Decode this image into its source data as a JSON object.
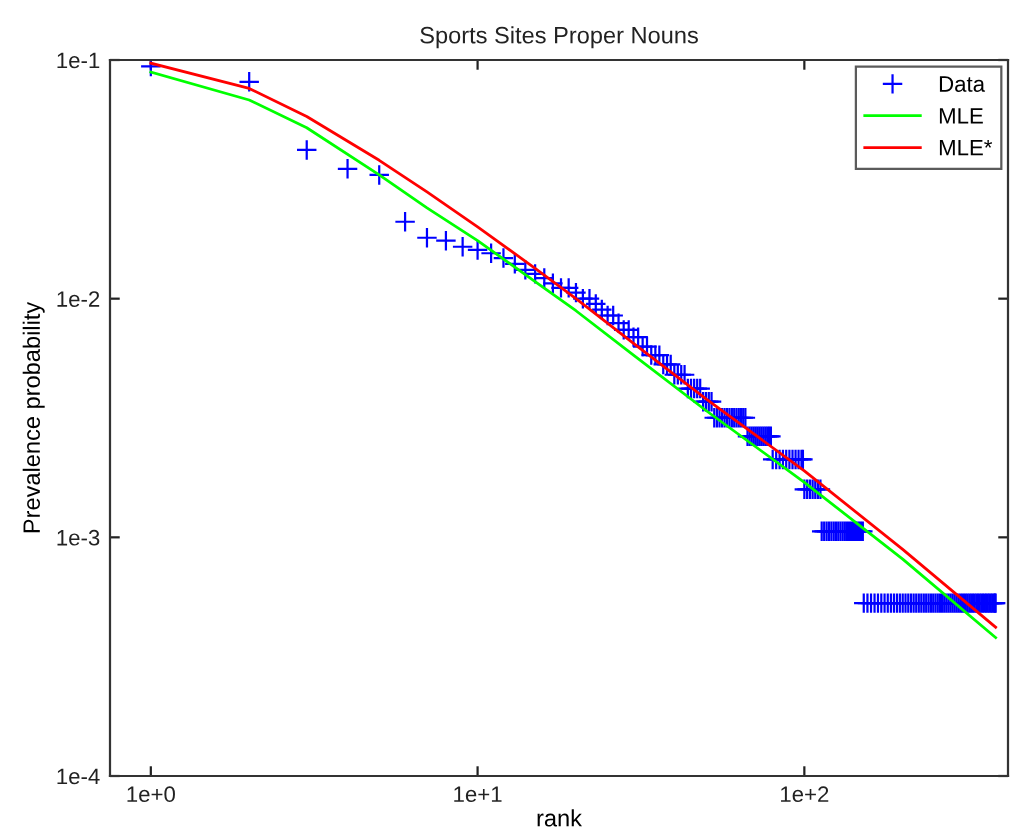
{
  "chart_data": {
    "type": "line",
    "title": "Sports Sites Proper Nouns",
    "xlabel": "rank",
    "ylabel": "Prevalence probability",
    "log": "xy",
    "xlim": [
      0.75,
      420
    ],
    "ylim": [
      0.0001,
      0.1
    ],
    "xticks": [
      {
        "value": 1,
        "label": "1e+0"
      },
      {
        "value": 10,
        "label": "1e+1"
      },
      {
        "value": 100,
        "label": "1e+2"
      }
    ],
    "yticks": [
      {
        "value": 0.0001,
        "label": "1e-4"
      },
      {
        "value": 0.001,
        "label": "1e-3"
      },
      {
        "value": 0.01,
        "label": "1e-2"
      },
      {
        "value": 0.1,
        "label": "1e-1"
      }
    ],
    "grid": false,
    "legend": "top right",
    "series": [
      {
        "name": "Data",
        "type": "scatter",
        "marker": "cross",
        "color": "#0000ff",
        "x": [
          1,
          2,
          3,
          4,
          5,
          6,
          7,
          8,
          9,
          10,
          11,
          12,
          13,
          14,
          15,
          16,
          17,
          18,
          19,
          20,
          21,
          22,
          23,
          24,
          25,
          26,
          27,
          28,
          29,
          30,
          31,
          32,
          33,
          34,
          35,
          36,
          37,
          38,
          39,
          40,
          41,
          42,
          43,
          44,
          45,
          46,
          47,
          48,
          49,
          50,
          51,
          52,
          53,
          54,
          55,
          56,
          57,
          58,
          59,
          60,
          61,
          62,
          63,
          64,
          65,
          66,
          67,
          68,
          69,
          70,
          71,
          72,
          73,
          74,
          75,
          76,
          77,
          78,
          79,
          80,
          82,
          84,
          86,
          88,
          90,
          92,
          94,
          96,
          98,
          99,
          100,
          102,
          104,
          106,
          108,
          110,
          112,
          113,
          115,
          117,
          119,
          121,
          123,
          125,
          127,
          129,
          131,
          133,
          135,
          137,
          139,
          141,
          143,
          145,
          147,
          149,
          151,
          152,
          156,
          160,
          164,
          168,
          172,
          176,
          180,
          184,
          188,
          192,
          196,
          200,
          204,
          208,
          212,
          216,
          220,
          224,
          228,
          232,
          236,
          240,
          244,
          248,
          252,
          256,
          260,
          264,
          268,
          272,
          276,
          280,
          284,
          288,
          292,
          296,
          300,
          304,
          308,
          312,
          316,
          320,
          324,
          328,
          332,
          336,
          340,
          344,
          348,
          352,
          356,
          360,
          364,
          368,
          372,
          376,
          380,
          383,
          385
        ],
        "values": [
          0.094,
          0.081,
          0.042,
          0.035,
          0.033,
          0.021,
          0.018,
          0.0175,
          0.0165,
          0.016,
          0.0155,
          0.0148,
          0.014,
          0.0132,
          0.0127,
          0.0122,
          0.0116,
          0.0111,
          0.0111,
          0.0106,
          0.01,
          0.01,
          0.0095,
          0.009,
          0.0085,
          0.0085,
          0.0079,
          0.0074,
          0.0074,
          0.0069,
          0.0069,
          0.0063,
          0.0063,
          0.0058,
          0.0058,
          0.0058,
          0.0053,
          0.0053,
          0.0053,
          0.0048,
          0.0048,
          0.0048,
          0.0048,
          0.0042,
          0.0042,
          0.0042,
          0.0042,
          0.0042,
          0.0037,
          0.0037,
          0.0037,
          0.0037,
          0.00317,
          0.00317,
          0.00317,
          0.00317,
          0.00317,
          0.00317,
          0.00317,
          0.00317,
          0.00317,
          0.00317,
          0.00317,
          0.00317,
          0.00317,
          0.00317,
          0.00265,
          0.00265,
          0.00265,
          0.00265,
          0.00265,
          0.00265,
          0.00265,
          0.00265,
          0.00265,
          0.00265,
          0.00265,
          0.00265,
          0.00265,
          0.00212,
          0.00212,
          0.00212,
          0.00212,
          0.00212,
          0.00212,
          0.00212,
          0.00212,
          0.00212,
          0.00212,
          0.00212,
          0.00159,
          0.00159,
          0.00159,
          0.00159,
          0.00159,
          0.00159,
          0.00159,
          0.00106,
          0.00106,
          0.00106,
          0.00106,
          0.00106,
          0.00106,
          0.00106,
          0.00106,
          0.00106,
          0.00106,
          0.00106,
          0.00106,
          0.00106,
          0.00106,
          0.00106,
          0.00106,
          0.00106,
          0.00106,
          0.00106,
          0.00106,
          0.00053,
          0.00053,
          0.00053,
          0.00053,
          0.00053,
          0.00053,
          0.00053,
          0.00053,
          0.00053,
          0.00053,
          0.00053,
          0.00053,
          0.00053,
          0.00053,
          0.00053,
          0.00053,
          0.00053,
          0.00053,
          0.00053,
          0.00053,
          0.00053,
          0.00053,
          0.00053,
          0.00053,
          0.00053,
          0.00053,
          0.00053,
          0.00053,
          0.00053,
          0.00053,
          0.00053,
          0.00053,
          0.00053,
          0.00053,
          0.00053,
          0.00053,
          0.00053,
          0.00053,
          0.00053,
          0.00053,
          0.00053,
          0.00053,
          0.00053,
          0.00053,
          0.00053,
          0.00053,
          0.00053,
          0.00053,
          0.00053,
          0.00053,
          0.00053,
          0.00053,
          0.00053,
          0.00053,
          0.00053,
          0.00053,
          0.00053,
          0.00053,
          0.00053,
          0.00053
        ]
      },
      {
        "name": "MLE",
        "color": "#00ff00",
        "line_style": "solid",
        "x": [
          1,
          2,
          3,
          5,
          7,
          10,
          15,
          20,
          30,
          50,
          100,
          200,
          385
        ],
        "values": [
          0.089,
          0.068,
          0.052,
          0.033,
          0.024,
          0.0175,
          0.0118,
          0.0089,
          0.0058,
          0.0034,
          0.0017,
          0.00081,
          0.00038
        ]
      },
      {
        "name": "MLE*",
        "color": "#ff0000",
        "line_style": "solid",
        "x": [
          1,
          2,
          3,
          5,
          7,
          10,
          15,
          20,
          30,
          50,
          100,
          200,
          385
        ],
        "values": [
          0.097,
          0.076,
          0.058,
          0.038,
          0.028,
          0.02,
          0.0134,
          0.01,
          0.0065,
          0.0038,
          0.0019,
          0.00089,
          0.00042
        ]
      }
    ]
  }
}
